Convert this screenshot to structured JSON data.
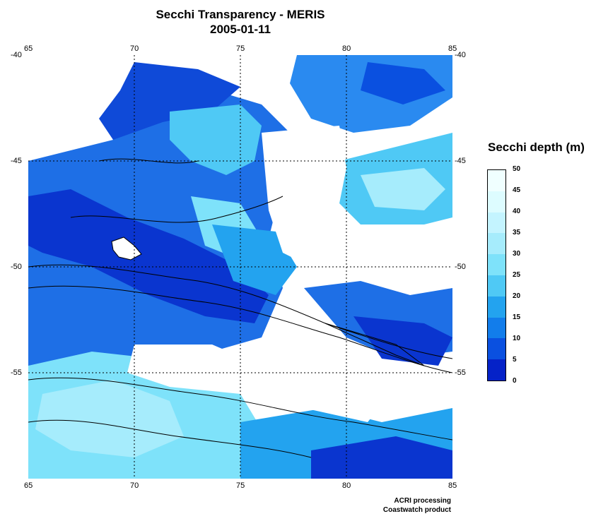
{
  "title": {
    "line1": "Secchi Transparency - MERIS",
    "line2": "2005-01-11"
  },
  "map": {
    "lon_range": [
      65,
      85
    ],
    "lat_range": [
      -60,
      -40
    ],
    "lon_ticks": [
      "65",
      "70",
      "75",
      "80",
      "85"
    ],
    "lat_ticks": [
      "-40",
      "-45",
      "-50",
      "-55"
    ],
    "grid": "dotted",
    "land_color": "#ffffff",
    "cloud_color": "#ffffff",
    "contour_color": "#000000"
  },
  "colorbar": {
    "title": "Secchi depth (m)",
    "labels": [
      "50",
      "45",
      "40",
      "35",
      "30",
      "25",
      "20",
      "15",
      "10",
      "5",
      "0"
    ],
    "colors": [
      "#f0ffff",
      "#ddfcff",
      "#c4f4ff",
      "#a6ecfc",
      "#7ee2fa",
      "#4fc9f5",
      "#23a3ef",
      "#127deb",
      "#0a50e0",
      "#0522c8",
      "#00139a"
    ]
  },
  "credits": {
    "line1": "ACRI processing",
    "line2": "Coastwatch product"
  }
}
